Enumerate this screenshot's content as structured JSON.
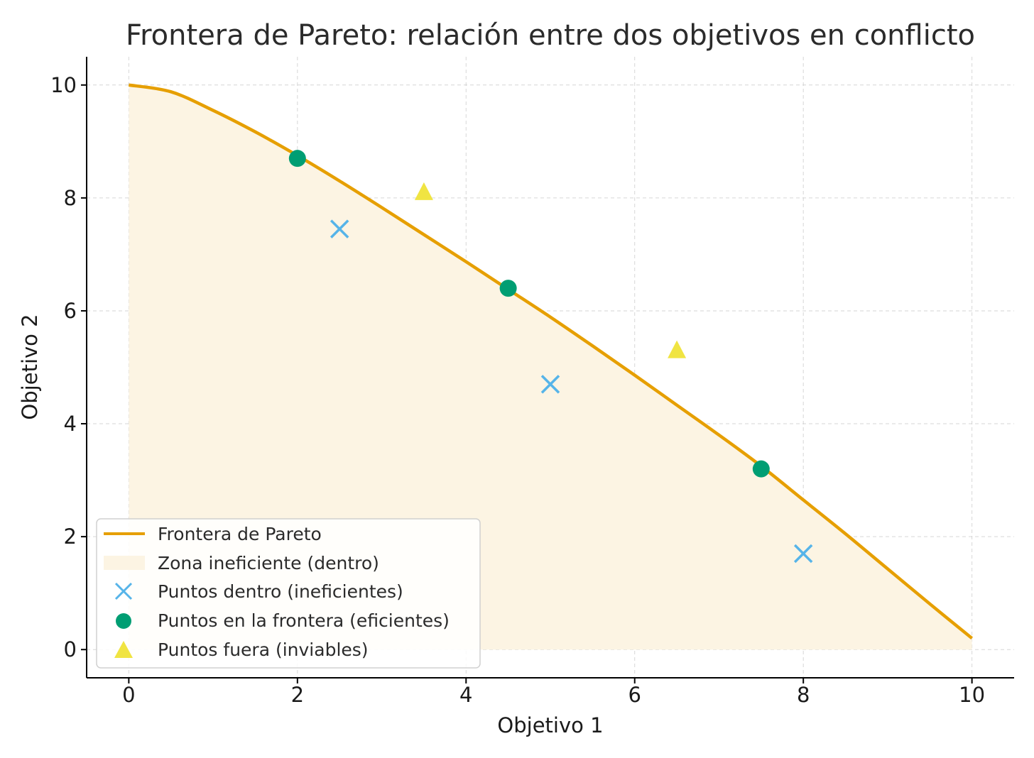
{
  "chart_data": {
    "type": "scatter",
    "title": "Frontera de Pareto: relación entre dos objetivos en conflicto",
    "xlabel": "Objetivo 1",
    "ylabel": "Objetivo 2",
    "xlim": [
      -0.5,
      10.5
    ],
    "ylim": [
      -0.5,
      10.5
    ],
    "xticks": [
      0,
      2,
      4,
      6,
      8,
      10
    ],
    "yticks": [
      0,
      2,
      4,
      6,
      8,
      10
    ],
    "grid": true,
    "legend_position": "lower-left",
    "frontier": {
      "name": "Frontera de Pareto",
      "color": "#E69F00",
      "x": [
        0,
        0.5,
        1,
        1.5,
        2,
        2.5,
        3,
        3.5,
        4,
        4.5,
        5,
        5.5,
        6,
        6.5,
        7,
        7.5,
        8,
        8.5,
        9,
        9.5,
        10
      ],
      "y": [
        10.0,
        9.88,
        9.55,
        9.17,
        8.75,
        8.3,
        7.83,
        7.35,
        6.87,
        6.38,
        5.89,
        5.38,
        4.86,
        4.33,
        3.8,
        3.25,
        2.65,
        2.05,
        1.43,
        0.81,
        0.2
      ]
    },
    "fill_region": {
      "name": "Zona ineficiente (dentro)",
      "color": "#FCF4E3"
    },
    "series": [
      {
        "name": "Puntos dentro (ineficientes)",
        "marker": "x",
        "color": "#56B4E9",
        "x": [
          2.5,
          5.0,
          8.0
        ],
        "y": [
          7.45,
          4.7,
          1.7
        ]
      },
      {
        "name": "Puntos en la frontera (eficientes)",
        "marker": "circle",
        "color": "#009E73",
        "x": [
          2.0,
          4.5,
          7.5
        ],
        "y": [
          8.7,
          6.4,
          3.2
        ]
      },
      {
        "name": "Puntos fuera (inviables)",
        "marker": "triangle",
        "color": "#F0E442",
        "x": [
          3.5,
          6.5
        ],
        "y": [
          8.1,
          5.3
        ]
      }
    ]
  }
}
